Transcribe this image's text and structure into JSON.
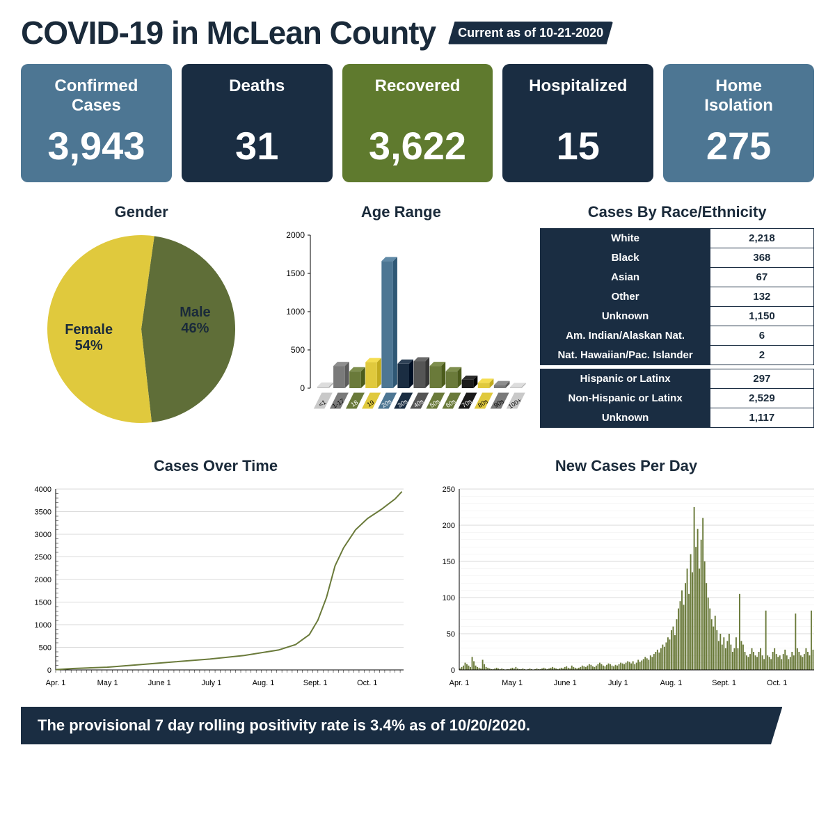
{
  "header": {
    "title": "COVID-19 in McLean County",
    "date_label": "Current as of 10-21-2020"
  },
  "colors": {
    "blue": "#4d7693",
    "navy": "#1a2d42",
    "green": "#5f7a2e",
    "text": "#1a2a3a",
    "yellow": "#e0c93d",
    "olive": "#6a7a3a",
    "line_green": "#6a7a3a"
  },
  "cards": [
    {
      "label": "Confirmed Cases",
      "value": "3,943",
      "color": "#4d7693"
    },
    {
      "label": "Deaths",
      "value": "31",
      "color": "#1a2d42"
    },
    {
      "label": "Recovered",
      "value": "3,622",
      "color": "#5f7a2e"
    },
    {
      "label": "Hospitalized",
      "value": "15",
      "color": "#1a2d42"
    },
    {
      "label": "Home Isolation",
      "value": "275",
      "color": "#4d7693"
    }
  ],
  "gender": {
    "title": "Gender",
    "female_label": "Female",
    "female_pct": "54%",
    "male_label": "Male",
    "male_pct": "46%",
    "female_color": "#e0c93d",
    "male_color": "#5f6e38",
    "female_deg": 194.4
  },
  "age": {
    "title": "Age Range",
    "ymax": 2000,
    "ytick_step": 500,
    "categories": [
      "<1",
      "1-17",
      "18",
      "19",
      "20s",
      "30s",
      "40s",
      "50s",
      "60s",
      "70s",
      "80s",
      "90s",
      "100+"
    ],
    "values": [
      20,
      290,
      220,
      340,
      1660,
      320,
      350,
      290,
      220,
      110,
      70,
      40,
      15
    ],
    "colors": [
      "#c9c9c9",
      "#7a7a7a",
      "#6a7a3a",
      "#e0c93d",
      "#4d7693",
      "#1a2d42",
      "#555555",
      "#6a7a3a",
      "#6a7a3a",
      "#1a1a1a",
      "#e0c93d",
      "#7a7a7a",
      "#c9c9c9"
    ]
  },
  "race": {
    "title": "Cases By Race/Ethnicity",
    "rows1": [
      {
        "label": "White",
        "value": "2,218"
      },
      {
        "label": "Black",
        "value": "368"
      },
      {
        "label": "Asian",
        "value": "67"
      },
      {
        "label": "Other",
        "value": "132"
      },
      {
        "label": "Unknown",
        "value": "1,150"
      },
      {
        "label": "Am. Indian/Alaskan Nat.",
        "value": "6"
      },
      {
        "label": "Nat. Hawaiian/Pac. Islander",
        "value": "2"
      }
    ],
    "rows2": [
      {
        "label": "Hispanic or Latinx",
        "value": "297"
      },
      {
        "label": "Non-Hispanic or Latinx",
        "value": "2,529"
      },
      {
        "label": "Unknown",
        "value": "1,117"
      }
    ]
  },
  "cases_over_time": {
    "title": "Cases Over Time",
    "ymax": 4000,
    "ytick_step": 500,
    "xlabels": [
      "Apr. 1",
      "May 1",
      "June 1",
      "July 1",
      "Aug. 1",
      "Sept. 1",
      "Oct. 1"
    ],
    "points": [
      [
        0,
        5
      ],
      [
        10,
        30
      ],
      [
        30,
        60
      ],
      [
        50,
        120
      ],
      [
        70,
        180
      ],
      [
        90,
        240
      ],
      [
        110,
        320
      ],
      [
        130,
        440
      ],
      [
        140,
        560
      ],
      [
        148,
        780
      ],
      [
        153,
        1100
      ],
      [
        158,
        1600
      ],
      [
        163,
        2300
      ],
      [
        168,
        2700
      ],
      [
        175,
        3100
      ],
      [
        182,
        3350
      ],
      [
        190,
        3550
      ],
      [
        198,
        3780
      ],
      [
        202,
        3943
      ]
    ],
    "xmax": 203
  },
  "new_cases": {
    "title": "New Cases Per Day",
    "ymax": 250,
    "ytick_step": 50,
    "xlabels": [
      "Apr. 1",
      "May 1",
      "June 1",
      "July 1",
      "Aug. 1",
      "Sept. 1",
      "Oct. 1"
    ],
    "values": [
      2,
      4,
      6,
      10,
      8,
      6,
      4,
      18,
      12,
      6,
      4,
      3,
      2,
      14,
      8,
      4,
      3,
      2,
      1,
      1,
      2,
      3,
      2,
      1,
      2,
      1,
      0,
      1,
      1,
      2,
      3,
      2,
      4,
      2,
      1,
      1,
      2,
      1,
      0,
      1,
      2,
      1,
      0,
      1,
      2,
      1,
      1,
      2,
      3,
      2,
      1,
      2,
      3,
      4,
      3,
      2,
      1,
      2,
      3,
      2,
      4,
      5,
      3,
      2,
      6,
      4,
      3,
      2,
      3,
      4,
      6,
      5,
      4,
      6,
      8,
      7,
      5,
      4,
      6,
      8,
      10,
      8,
      6,
      5,
      7,
      9,
      8,
      6,
      5,
      7,
      6,
      8,
      10,
      9,
      8,
      10,
      12,
      11,
      9,
      12,
      8,
      10,
      14,
      11,
      13,
      15,
      18,
      16,
      14,
      20,
      18,
      22,
      25,
      28,
      24,
      30,
      35,
      32,
      38,
      45,
      42,
      55,
      60,
      48,
      70,
      85,
      95,
      110,
      90,
      120,
      140,
      105,
      160,
      135,
      225,
      170,
      195,
      140,
      180,
      210,
      150,
      120,
      100,
      85,
      70,
      60,
      75,
      55,
      40,
      50,
      35,
      45,
      30,
      40,
      50,
      35,
      25,
      30,
      45,
      30,
      105,
      40,
      35,
      25,
      20,
      18,
      22,
      30,
      25,
      20,
      18,
      25,
      30,
      20,
      15,
      82,
      20,
      18,
      15,
      25,
      30,
      22,
      18,
      20,
      15,
      22,
      28,
      20,
      15,
      18,
      25,
      20,
      78,
      30,
      25,
      20,
      18,
      22,
      30,
      25,
      20,
      82,
      28
    ]
  },
  "footer": "The provisional 7 day rolling positivity rate is 3.4% as of 10/20/2020."
}
